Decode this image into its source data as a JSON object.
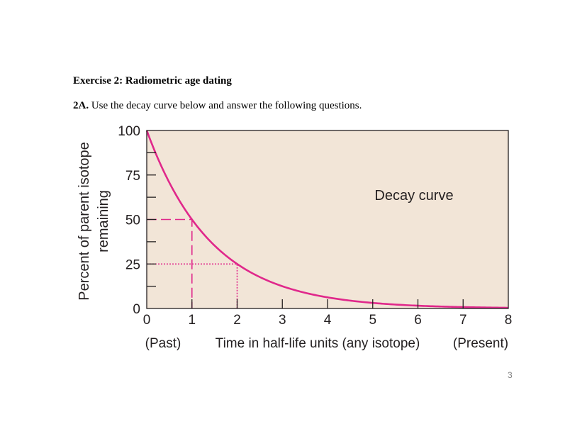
{
  "document": {
    "heading": "Exercise 2: Radiometric age dating",
    "question_label": "2A.",
    "question_text": " Use the decay curve below and answer the following questions.",
    "page_number": "3"
  },
  "chart_data": {
    "type": "line",
    "title": "",
    "annotation": "Decay curve",
    "ylabel_line1": "Percent of parent isotope",
    "ylabel_line2": "remaining",
    "xlabel": "Time in half-life units (any isotope)",
    "x_left_label": "(Past)",
    "x_right_label": "(Present)",
    "xlim": [
      0,
      8
    ],
    "ylim": [
      0,
      100
    ],
    "xticks": [
      0,
      1,
      2,
      3,
      4,
      5,
      6,
      7,
      8
    ],
    "yticks": [
      0,
      25,
      50,
      75,
      100
    ],
    "series": [
      {
        "x": [
          0,
          0.5,
          1,
          1.5,
          2,
          2.5,
          3,
          3.5,
          4,
          4.5,
          5,
          5.5,
          6,
          6.5,
          7,
          7.5,
          8
        ],
        "y": [
          100,
          70.7,
          50,
          35.4,
          25,
          17.7,
          12.5,
          8.8,
          6.25,
          4.4,
          3.1,
          2.2,
          1.6,
          1.1,
          0.8,
          0.55,
          0.4
        ]
      }
    ],
    "reference_lines": [
      {
        "x": 1,
        "y": 50,
        "style": "dashed"
      },
      {
        "x": 2,
        "y": 25,
        "style": "dotted"
      }
    ],
    "colors": {
      "background": "#f2e5d7",
      "curve": "#e0288b",
      "axis": "#231f20"
    }
  }
}
